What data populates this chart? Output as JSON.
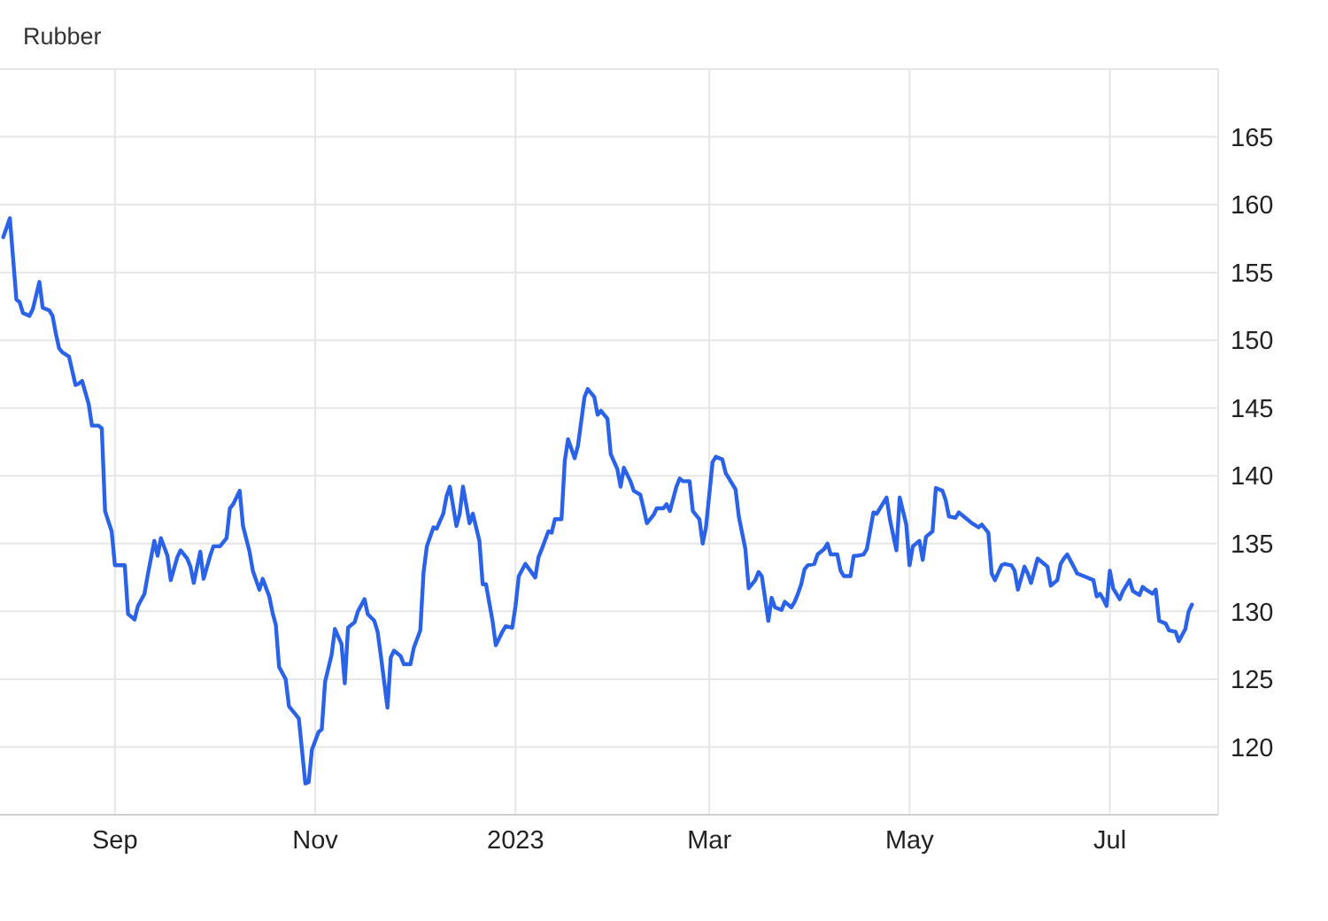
{
  "chart_data": {
    "type": "line",
    "title": "Rubber",
    "x": [
      "2022-07-29",
      "2022-07-31",
      "2022-08-02",
      "2022-08-03",
      "2022-08-04",
      "2022-08-06",
      "2022-08-07",
      "2022-08-09",
      "2022-08-10",
      "2022-08-12",
      "2022-08-13",
      "2022-08-14",
      "2022-08-15",
      "2022-08-16",
      "2022-08-18",
      "2022-08-20",
      "2022-08-21",
      "2022-08-22",
      "2022-08-24",
      "2022-08-25",
      "2022-08-27",
      "2022-08-28",
      "2022-08-29",
      "2022-08-31",
      "2022-09-01",
      "2022-09-04",
      "2022-09-05",
      "2022-09-07",
      "2022-09-08",
      "2022-09-10",
      "2022-09-11",
      "2022-09-13",
      "2022-09-14",
      "2022-09-15",
      "2022-09-17",
      "2022-09-18",
      "2022-09-20",
      "2022-09-21",
      "2022-09-23",
      "2022-09-24",
      "2022-09-25",
      "2022-09-27",
      "2022-09-28",
      "2022-09-30",
      "2022-10-01",
      "2022-10-03",
      "2022-10-05",
      "2022-10-06",
      "2022-10-07",
      "2022-10-09",
      "2022-10-10",
      "2022-10-12",
      "2022-10-13",
      "2022-10-15",
      "2022-10-16",
      "2022-10-18",
      "2022-10-19",
      "2022-10-20",
      "2022-10-21",
      "2022-10-23",
      "2022-10-24",
      "2022-10-26",
      "2022-10-27",
      "2022-10-29",
      "2022-10-30",
      "2022-10-31",
      "2022-11-02",
      "2022-11-03",
      "2022-11-04",
      "2022-11-06",
      "2022-11-07",
      "2022-11-09",
      "2022-11-10",
      "2022-11-11",
      "2022-11-13",
      "2022-11-14",
      "2022-11-16",
      "2022-11-17",
      "2022-11-19",
      "2022-11-20",
      "2022-11-21",
      "2022-11-23",
      "2022-11-24",
      "2022-11-25",
      "2022-11-27",
      "2022-11-28",
      "2022-11-30",
      "2022-12-01",
      "2022-12-03",
      "2022-12-04",
      "2022-12-05",
      "2022-12-07",
      "2022-12-08",
      "2022-12-10",
      "2022-12-11",
      "2022-12-12",
      "2022-12-14",
      "2022-12-15",
      "2022-12-16",
      "2022-12-18",
      "2022-12-19",
      "2022-12-21",
      "2022-12-22",
      "2022-12-23",
      "2022-12-25",
      "2022-12-26",
      "2022-12-28",
      "2022-12-29",
      "2022-12-31",
      "2023-01-01",
      "2023-01-02",
      "2023-01-04",
      "2023-01-07",
      "2023-01-08",
      "2023-01-09",
      "2023-01-11",
      "2023-01-12",
      "2023-01-13",
      "2023-01-15",
      "2023-01-16",
      "2023-01-17",
      "2023-01-19",
      "2023-01-20",
      "2023-01-22",
      "2023-01-23",
      "2023-01-25",
      "2023-01-26",
      "2023-01-27",
      "2023-01-29",
      "2023-01-30",
      "2023-02-01",
      "2023-02-02",
      "2023-02-03",
      "2023-02-05",
      "2023-02-06",
      "2023-02-08",
      "2023-02-09",
      "2023-02-10",
      "2023-02-12",
      "2023-02-13",
      "2023-02-15",
      "2023-02-16",
      "2023-02-17",
      "2023-02-19",
      "2023-02-20",
      "2023-02-21",
      "2023-02-23",
      "2023-02-24",
      "2023-02-26",
      "2023-02-27",
      "2023-02-28",
      "2023-03-02",
      "2023-03-03",
      "2023-03-05",
      "2023-03-06",
      "2023-03-08",
      "2023-03-09",
      "2023-03-10",
      "2023-03-12",
      "2023-03-13",
      "2023-03-15",
      "2023-03-16",
      "2023-03-17",
      "2023-03-19",
      "2023-03-20",
      "2023-03-21",
      "2023-03-23",
      "2023-03-24",
      "2023-03-26",
      "2023-03-27",
      "2023-03-28",
      "2023-03-29",
      "2023-03-30",
      "2023-03-31",
      "2023-04-02",
      "2023-04-03",
      "2023-04-05",
      "2023-04-06",
      "2023-04-07",
      "2023-04-09",
      "2023-04-10",
      "2023-04-11",
      "2023-04-13",
      "2023-04-14",
      "2023-04-15",
      "2023-04-17",
      "2023-04-18",
      "2023-04-20",
      "2023-04-21",
      "2023-04-22",
      "2023-04-24",
      "2023-04-25",
      "2023-04-27",
      "2023-04-28",
      "2023-04-30",
      "2023-05-01",
      "2023-05-02",
      "2023-05-04",
      "2023-05-05",
      "2023-05-06",
      "2023-05-08",
      "2023-05-09",
      "2023-05-11",
      "2023-05-12",
      "2023-05-13",
      "2023-05-15",
      "2023-05-16",
      "2023-05-18",
      "2023-05-19",
      "2023-05-20",
      "2023-05-22",
      "2023-05-23",
      "2023-05-25",
      "2023-05-26",
      "2023-05-27",
      "2023-05-29",
      "2023-05-30",
      "2023-06-01",
      "2023-06-02",
      "2023-06-03",
      "2023-06-05",
      "2023-06-06",
      "2023-06-07",
      "2023-06-09",
      "2023-06-10",
      "2023-06-12",
      "2023-06-13",
      "2023-06-15",
      "2023-06-16",
      "2023-06-17",
      "2023-06-18",
      "2023-06-20",
      "2023-06-21",
      "2023-06-23",
      "2023-06-24",
      "2023-06-26",
      "2023-06-27",
      "2023-06-28",
      "2023-06-29",
      "2023-06-30",
      "2023-07-01",
      "2023-07-02",
      "2023-07-04",
      "2023-07-05",
      "2023-07-07",
      "2023-07-08",
      "2023-07-10",
      "2023-07-11",
      "2023-07-12",
      "2023-07-14",
      "2023-07-15",
      "2023-07-16",
      "2023-07-18",
      "2023-07-19",
      "2023-07-21",
      "2023-07-22",
      "2023-07-24",
      "2023-07-25",
      "2023-07-26"
    ],
    "series": [
      {
        "color": "#2b63e8",
        "values": [
          157.6,
          159.0,
          153.0,
          152.8,
          152.0,
          151.8,
          152.3,
          154.3,
          152.4,
          152.2,
          151.8,
          150.5,
          149.4,
          149.1,
          148.8,
          146.7,
          146.8,
          147.0,
          145.3,
          143.7,
          143.7,
          143.5,
          137.4,
          135.9,
          133.4,
          133.4,
          129.8,
          129.4,
          130.4,
          131.3,
          132.7,
          135.2,
          134.1,
          135.4,
          134.1,
          132.3,
          134.0,
          134.5,
          133.9,
          133.3,
          132.1,
          134.4,
          132.4,
          134.1,
          134.8,
          134.8,
          135.4,
          137.6,
          137.9,
          138.9,
          136.3,
          134.4,
          133.0,
          131.6,
          132.4,
          131.1,
          129.9,
          129.0,
          125.9,
          125.0,
          123.0,
          122.4,
          122.1,
          117.3,
          117.4,
          119.8,
          121.1,
          121.3,
          124.8,
          126.8,
          128.7,
          127.6,
          124.7,
          128.8,
          129.2,
          130.0,
          130.9,
          129.8,
          129.3,
          128.5,
          126.7,
          122.9,
          126.6,
          127.1,
          126.7,
          126.1,
          126.1,
          127.3,
          128.6,
          132.9,
          134.8,
          136.2,
          136.1,
          137.2,
          138.5,
          139.2,
          136.3,
          137.2,
          139.2,
          136.5,
          137.2,
          135.2,
          132.0,
          132.0,
          129.3,
          127.5,
          128.5,
          128.9,
          128.8,
          130.4,
          132.6,
          133.5,
          132.5,
          134.0,
          134.6,
          135.9,
          135.8,
          136.8,
          136.8,
          141.1,
          142.7,
          141.3,
          142.2,
          145.8,
          146.4,
          145.8,
          144.5,
          144.8,
          144.2,
          141.6,
          140.5,
          139.2,
          140.6,
          139.6,
          138.9,
          138.6,
          137.6,
          136.5,
          137.1,
          137.6,
          137.6,
          137.9,
          137.4,
          139.2,
          139.8,
          139.6,
          139.6,
          137.4,
          136.8,
          135.0,
          136.2,
          141.0,
          141.4,
          141.2,
          140.2,
          139.4,
          139.0,
          137.0,
          134.6,
          131.7,
          132.3,
          132.9,
          132.6,
          129.3,
          131.0,
          130.3,
          130.1,
          130.7,
          130.3,
          130.7,
          131.3,
          132.0,
          133.1,
          133.4,
          133.5,
          134.2,
          134.6,
          135.0,
          134.2,
          134.2,
          133.0,
          132.6,
          132.6,
          134.1,
          134.1,
          134.2,
          134.6,
          137.3,
          137.2,
          137.6,
          138.4,
          136.8,
          134.5,
          138.4,
          136.4,
          133.4,
          134.8,
          135.2,
          133.8,
          135.5,
          135.9,
          139.1,
          138.9,
          138.2,
          137.0,
          136.9,
          137.3,
          136.9,
          136.7,
          136.5,
          136.2,
          136.4,
          135.8,
          132.8,
          132.3,
          133.4,
          133.5,
          133.4,
          133.0,
          131.6,
          133.3,
          132.8,
          132.1,
          133.9,
          133.7,
          133.3,
          131.9,
          132.3,
          133.5,
          133.9,
          134.2,
          133.3,
          132.8,
          132.6,
          132.5,
          132.3,
          131.1,
          131.3,
          130.9,
          130.4,
          133.0,
          131.7,
          130.9,
          131.5,
          132.3,
          131.5,
          131.2,
          131.8,
          131.6,
          131.3,
          131.6,
          129.3,
          129.1,
          128.6,
          128.5,
          127.8,
          128.7,
          130.0,
          130.5
        ]
      }
    ],
    "xlim": [
      "2022-07-28",
      "2023-08-03"
    ],
    "xticks": [
      {
        "value": "2022-09-01",
        "label": "Sep"
      },
      {
        "value": "2022-11-01",
        "label": "Nov"
      },
      {
        "value": "2023-01-01",
        "label": "2023"
      },
      {
        "value": "2023-03-01",
        "label": "Mar"
      },
      {
        "value": "2023-05-01",
        "label": "May"
      },
      {
        "value": "2023-07-01",
        "label": "Jul"
      }
    ],
    "ylim": [
      115,
      170
    ],
    "yticks": [
      120,
      125,
      130,
      135,
      140,
      145,
      150,
      155,
      160,
      165
    ],
    "grid": true,
    "line_style": "solid"
  }
}
